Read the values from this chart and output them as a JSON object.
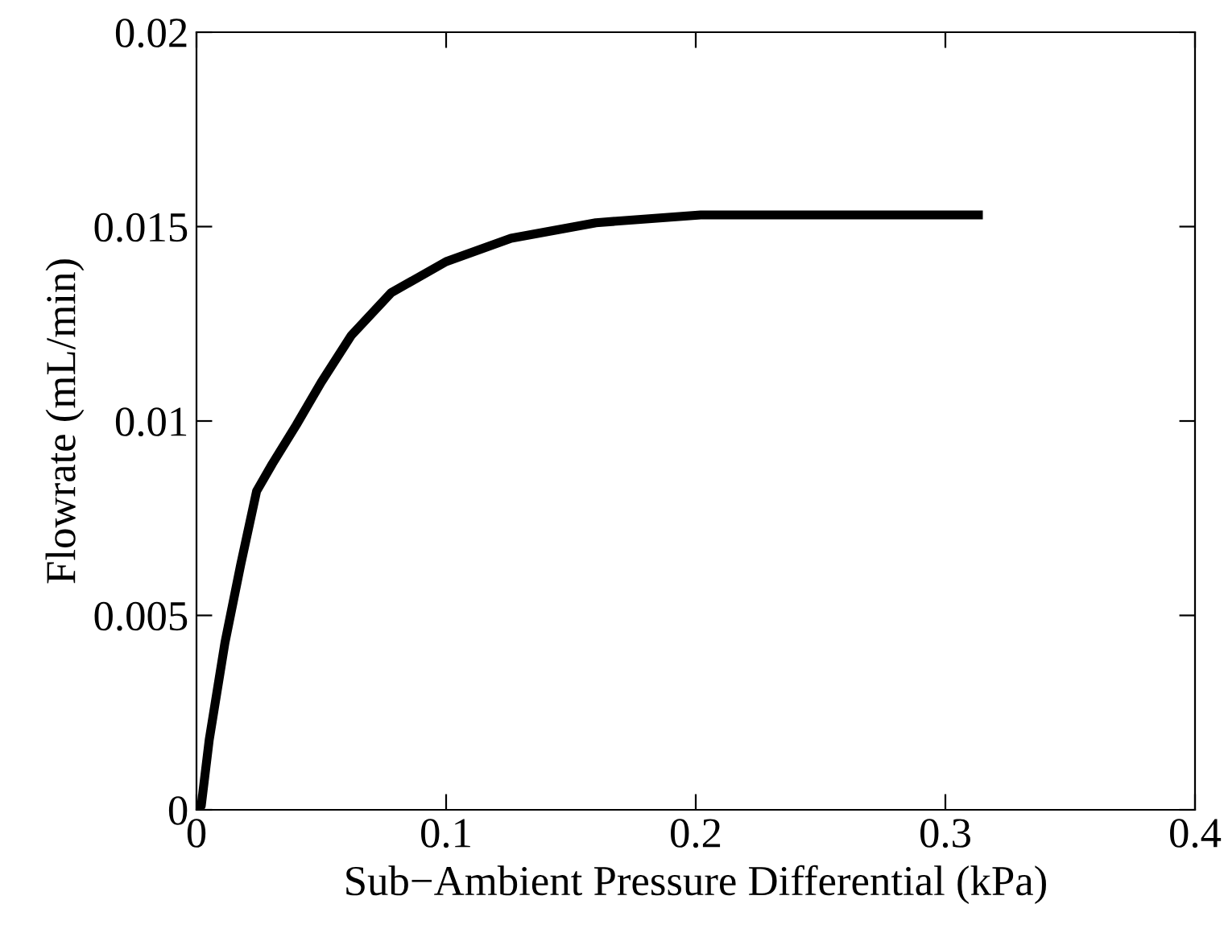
{
  "chart_data": {
    "type": "line",
    "xlabel": "Sub−Ambient Pressure Differential (kPa)",
    "ylabel": "Flowrate (mL/min)",
    "x": [
      0,
      0.0019,
      0.0051,
      0.0114,
      0.0177,
      0.0241,
      0.0304,
      0.04,
      0.05,
      0.062,
      0.078,
      0.1,
      0.126,
      0.16,
      0.202,
      0.252,
      0.315
    ],
    "series": [
      {
        "color": "#000000",
        "values": [
          0,
          0.0001,
          0.0018,
          0.0043,
          0.0063,
          0.0082,
          0.0089,
          0.0099,
          0.011,
          0.0122,
          0.0133,
          0.0141,
          0.0147,
          0.0151,
          0.0153,
          0.0153,
          0.0153
        ]
      }
    ],
    "xlim": [
      0,
      0.4
    ],
    "ylim": [
      0,
      0.02
    ],
    "xticks": [
      0,
      0.1,
      0.2,
      0.3,
      0.4
    ],
    "yticks": [
      0,
      0.005,
      0.01,
      0.015,
      0.02
    ],
    "grid": false,
    "legend": false,
    "marker": "none",
    "line_style": "solid"
  }
}
